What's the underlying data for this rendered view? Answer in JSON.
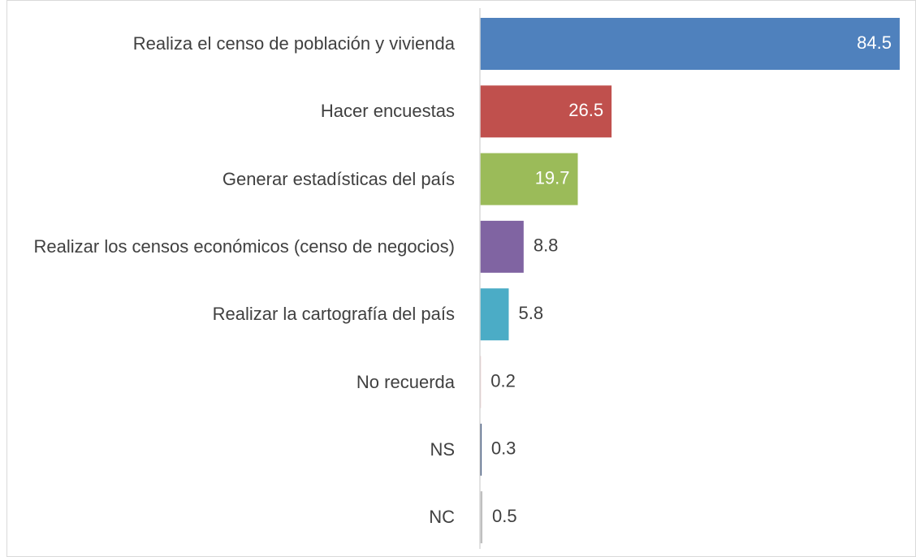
{
  "chart_data": {
    "type": "bar",
    "orientation": "horizontal",
    "categories": [
      "Realiza el censo de población y vivienda",
      "Hacer encuestas",
      "Generar estadísticas del país",
      "Realizar los censos económicos (censo de negocios)",
      "Realizar la cartografía del país",
      "No recuerda",
      "NS",
      "NC"
    ],
    "values": [
      84.5,
      26.5,
      19.7,
      8.8,
      5.8,
      0.2,
      0.3,
      0.5
    ],
    "colors": [
      "#4f81bd",
      "#c0504d",
      "#9bbb59",
      "#8064a2",
      "#4bacc6",
      "#e6b9b8",
      "#1f3864",
      "#bfbfbf"
    ],
    "xlim": [
      0,
      85
    ]
  }
}
